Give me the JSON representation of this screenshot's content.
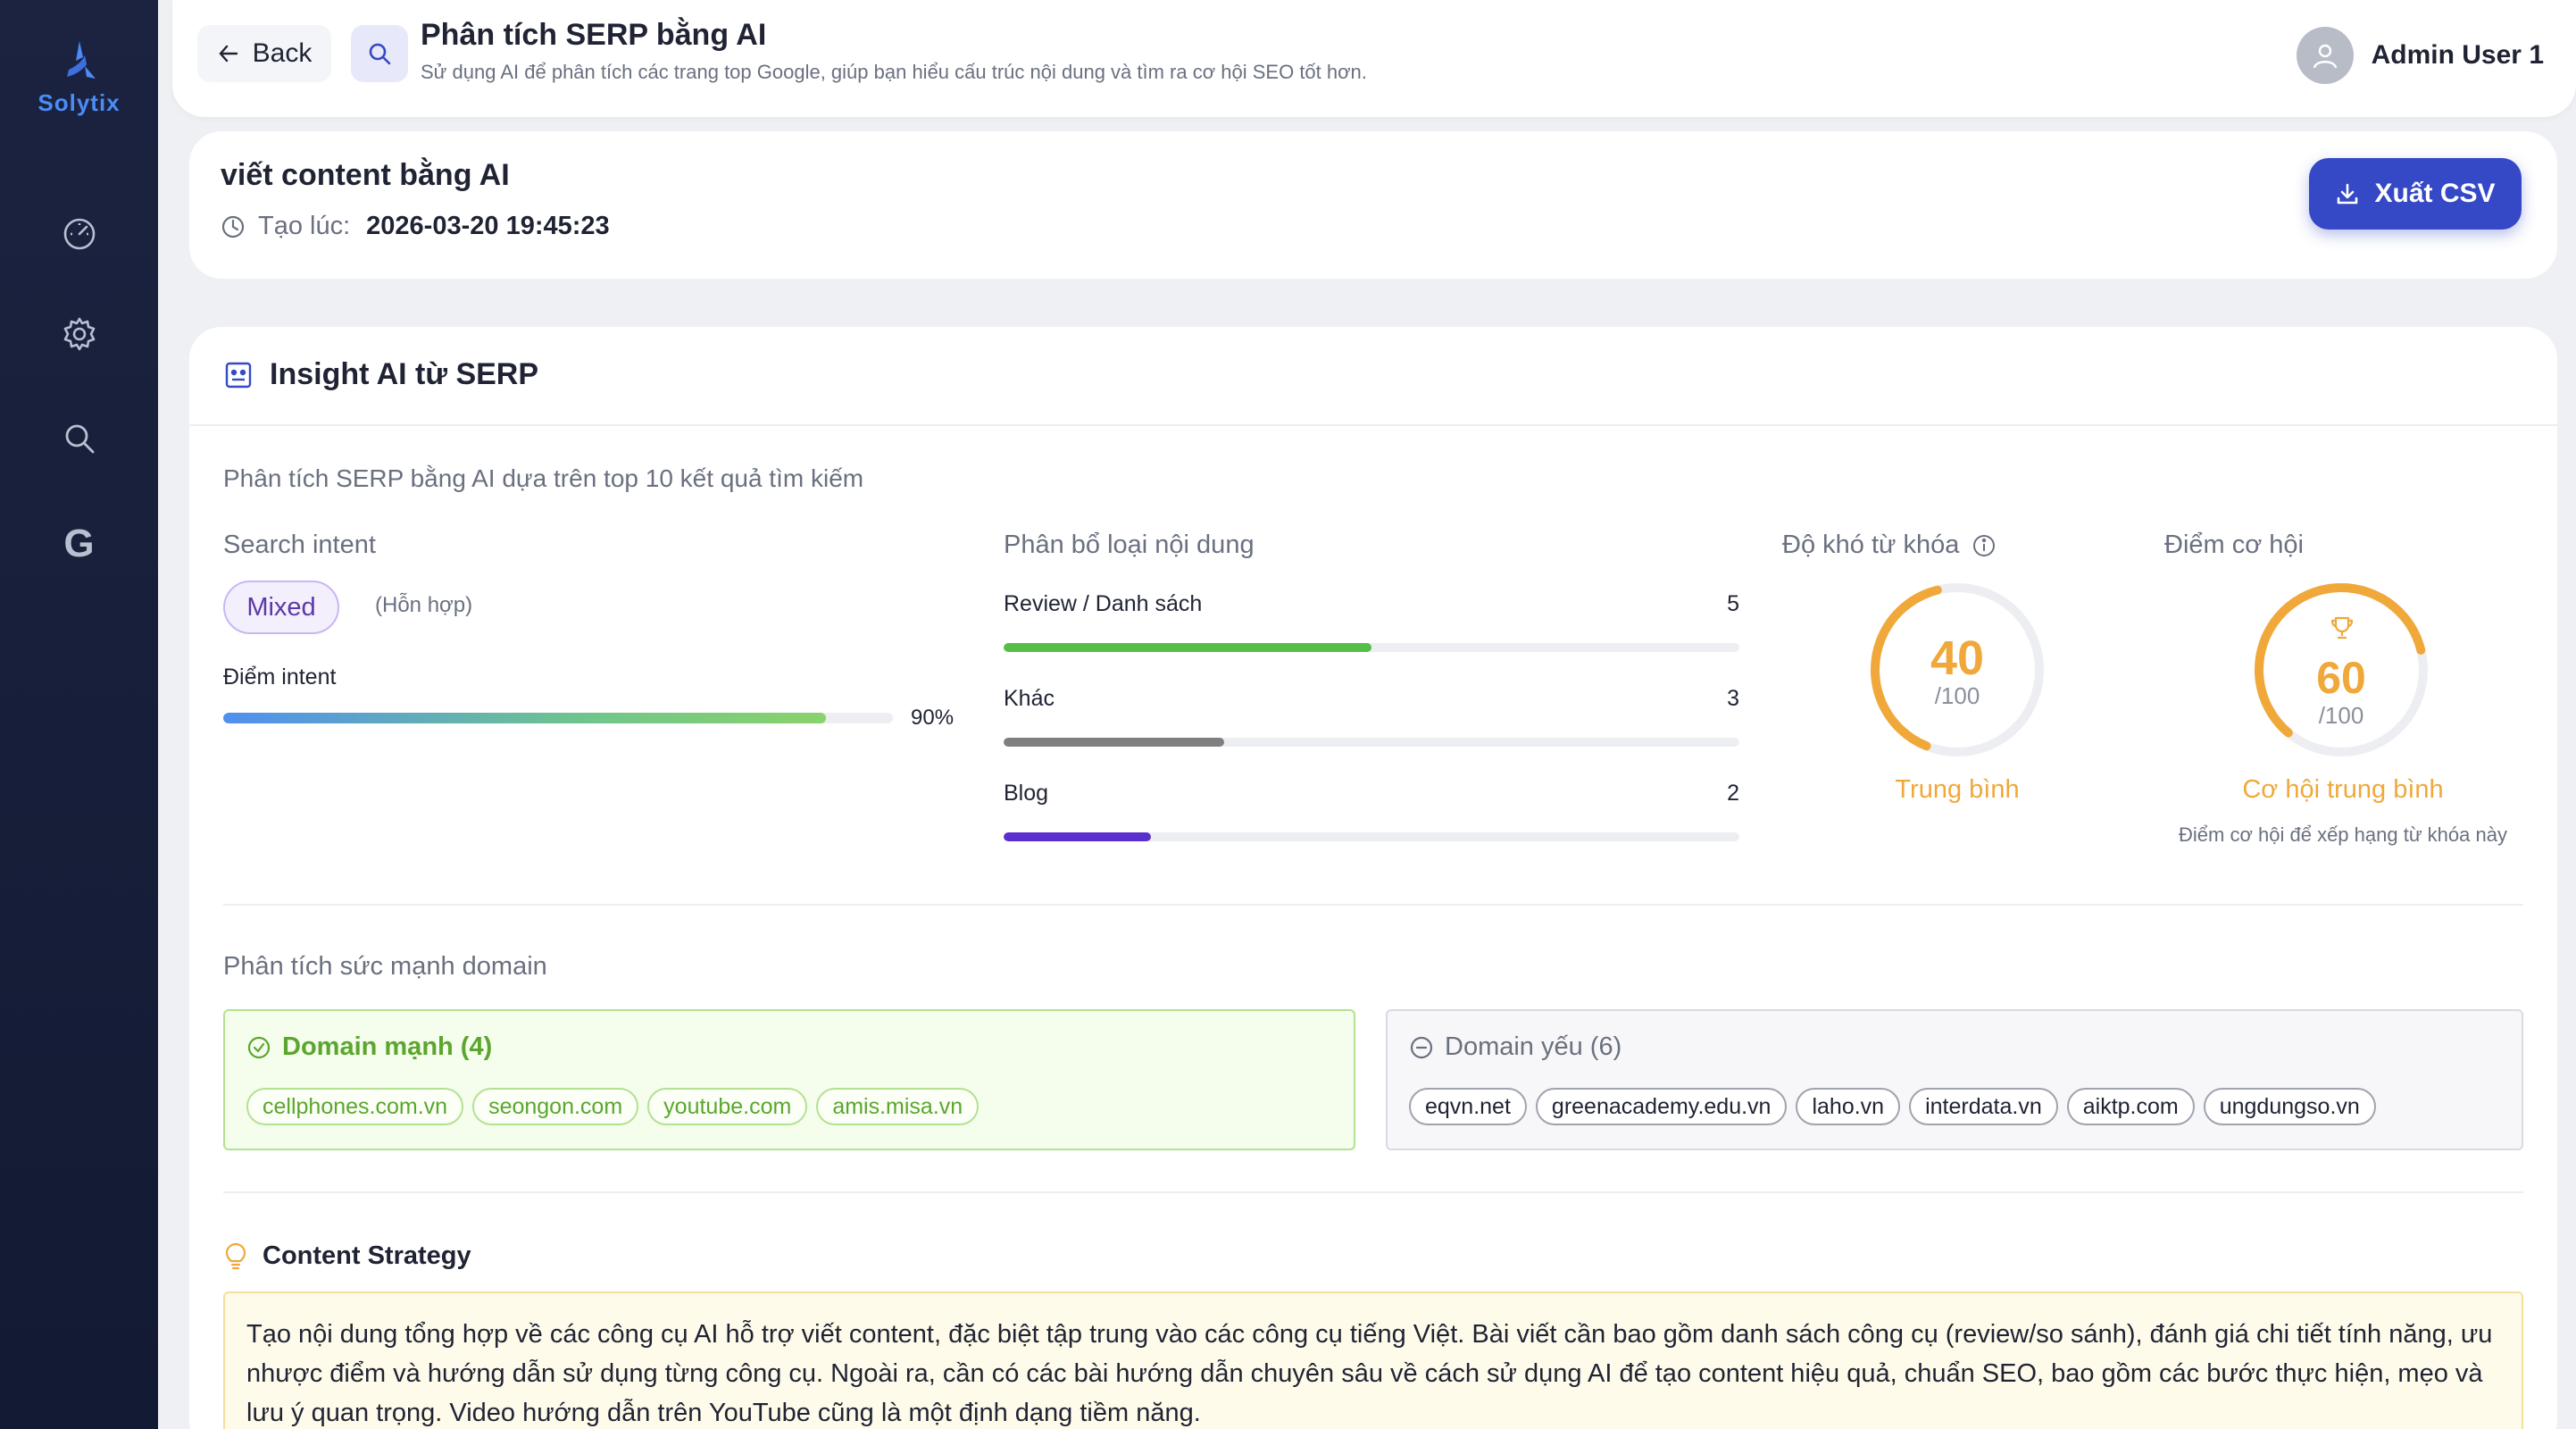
{
  "brand": {
    "name": "Solytix",
    "accent": "#3549c6"
  },
  "sidebar": {
    "items": [
      {
        "icon": "dashboard-gauge-icon"
      },
      {
        "icon": "gear-icon"
      },
      {
        "icon": "search-icon"
      },
      {
        "icon": "google-icon",
        "glyph": "G"
      }
    ]
  },
  "header": {
    "back_label": "Back",
    "title": "Phân tích SERP bằng AI",
    "subtitle": "Sử dụng AI để phân tích các trang top Google, giúp bạn hiểu cấu trúc nội dung và tìm ra cơ hội SEO tốt hơn.",
    "user_name": "Admin User 1"
  },
  "keyword": {
    "title": "viết content bằng AI",
    "created_label": "Tạo lúc:",
    "created_value": "2026-03-20 19:45:23",
    "export_label": "Xuất CSV"
  },
  "insight": {
    "title": "Insight AI từ SERP",
    "description": "Phân tích SERP bằng AI dựa trên top 10 kết quả tìm kiếm",
    "search_intent": {
      "label": "Search intent",
      "value": "Mixed",
      "value_note": "(Hỗn hợp)",
      "score_label": "Điểm intent",
      "score_percent": 90,
      "score_text": "90%"
    },
    "content_distribution": {
      "label": "Phân bổ loại nội dung",
      "items": [
        {
          "name": "Review / Danh sách",
          "count": 5,
          "count_text": "5",
          "color": "#55bf45"
        },
        {
          "name": "Khác",
          "count": 3,
          "count_text": "3",
          "color": "#7f7f7f"
        },
        {
          "name": "Blog",
          "count": 2,
          "count_text": "2",
          "color": "#5b2fcf"
        }
      ]
    },
    "difficulty": {
      "label": "Độ khó từ khóa",
      "value": 40,
      "value_text": "40",
      "max_text": "/100",
      "caption": "Trung bình",
      "color": "#f0a83a"
    },
    "opportunity": {
      "label": "Điểm cơ hội",
      "value": 60,
      "value_text": "60",
      "max_text": "/100",
      "caption": "Cơ hội trung bình",
      "note": "Điểm cơ hội để xếp hạng từ khóa này",
      "color": "#f0a83a"
    },
    "domain_strength": {
      "label": "Phân tích sức mạnh domain",
      "strong": {
        "title": "Domain mạnh (4)",
        "domains": [
          "cellphones.com.vn",
          "seongon.com",
          "youtube.com",
          "amis.misa.vn"
        ]
      },
      "weak": {
        "title": "Domain yếu (6)",
        "domains": [
          "eqvn.net",
          "greenacademy.edu.vn",
          "laho.vn",
          "interdata.vn",
          "aiktp.com",
          "ungdungso.vn"
        ]
      }
    },
    "content_strategy": {
      "title": "Content Strategy",
      "text": "Tạo nội dung tổng hợp về các công cụ AI hỗ trợ viết content, đặc biệt tập trung vào các công cụ tiếng Việt. Bài viết cần bao gồm danh sách công cụ (review/so sánh), đánh giá chi tiết tính năng, ưu nhược điểm và hướng dẫn sử dụng từng công cụ. Ngoài ra, cần có các bài hướng dẫn chuyên sâu về cách sử dụng AI để tạo content hiệu quả, chuẩn SEO, bao gồm các bước thực hiện, mẹo và lưu ý quan trọng. Video hướng dẫn trên YouTube cũng là một định dạng tiềm năng."
    }
  }
}
